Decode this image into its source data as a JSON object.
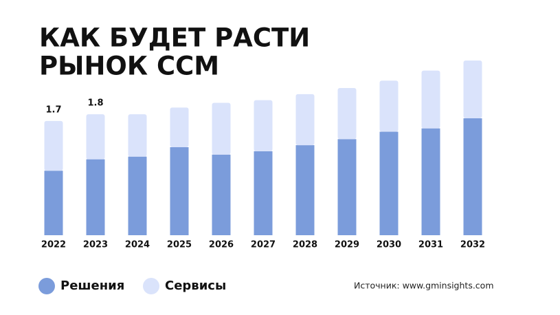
{
  "chart_data": {
    "type": "stacked-bar",
    "title": [
      "КАК БУДЕТ РАСТИ",
      "РЫНОК CCM"
    ],
    "categories": [
      "2022",
      "2023",
      "2024",
      "2025",
      "2026",
      "2027",
      "2028",
      "2029",
      "2030",
      "2031",
      "2032"
    ],
    "series": [
      {
        "name": "Решения",
        "color": "#7b9cdb",
        "values": [
          0.96,
          1.13,
          1.17,
          1.31,
          1.2,
          1.25,
          1.34,
          1.43,
          1.54,
          1.59,
          1.74
        ]
      },
      {
        "name": "Сервисы",
        "color": "#dae3fb",
        "values": [
          0.74,
          0.67,
          0.63,
          0.59,
          0.77,
          0.76,
          0.76,
          0.76,
          0.76,
          0.86,
          0.86
        ]
      }
    ],
    "totals": [
      1.7,
      1.8,
      null,
      null,
      null,
      null,
      null,
      null,
      null,
      null,
      null
    ],
    "source": "Источник: www.gminsights.com"
  }
}
